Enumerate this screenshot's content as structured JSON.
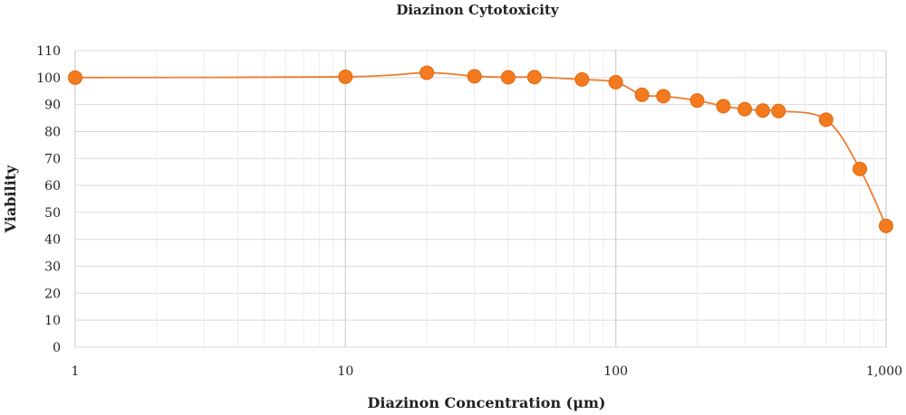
{
  "chart_data": {
    "type": "scatter",
    "title": "Diazinon Cytotoxicity",
    "xlabel": "Diazinon Concentration (μm)",
    "ylabel": "Viability",
    "x_scale": "log",
    "xlim": [
      1,
      1000
    ],
    "ylim": [
      0,
      110
    ],
    "x_ticks": [
      1,
      10,
      100,
      1000
    ],
    "x_tick_labels": [
      "1",
      "10",
      "100",
      "1,000"
    ],
    "y_ticks": [
      0,
      10,
      20,
      30,
      40,
      50,
      60,
      70,
      80,
      90,
      100,
      110
    ],
    "y_tick_labels": [
      "0",
      "10",
      "20",
      "30",
      "40",
      "50",
      "60",
      "70",
      "80",
      "90",
      "100",
      "110"
    ],
    "grid": true,
    "legend": "none",
    "smooth_line": true,
    "color": "#f47a20",
    "line_color": "#ee7d31",
    "series": [
      {
        "x": [
          1,
          10,
          20,
          30,
          40,
          50,
          75,
          100,
          125,
          150,
          200,
          250,
          300,
          350,
          400,
          600,
          800,
          1000
        ],
        "y": [
          100,
          100.3,
          101.8,
          100.5,
          100.1,
          100.2,
          99.3,
          98.3,
          93.6,
          93.1,
          91.5,
          89.4,
          88.3,
          87.8,
          87.6,
          84.4,
          66.1,
          45.0
        ]
      }
    ]
  }
}
